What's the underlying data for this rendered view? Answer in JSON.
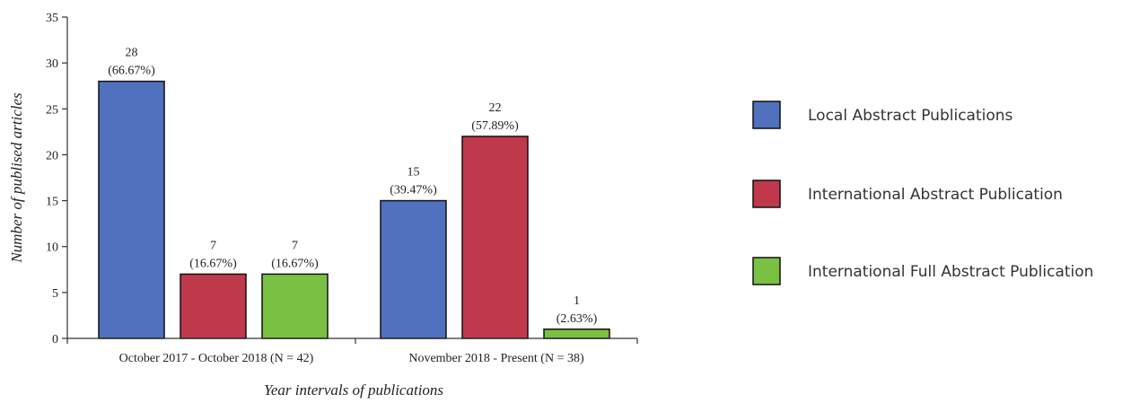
{
  "chart_data": {
    "type": "bar",
    "title": "",
    "xlabel": "Year intervals of publications",
    "ylabel": "Number of publised articles",
    "ylim": [
      0,
      35
    ],
    "yticks": [
      0,
      5,
      10,
      15,
      20,
      25,
      30,
      35
    ],
    "grid": false,
    "legend_position": "right",
    "categories": [
      "October 2017 - October 2018 (N = 42)",
      "November 2018 - Present (N = 38)"
    ],
    "series": [
      {
        "name": "Local Abstract Publications",
        "color": "#4f71be",
        "values": [
          28,
          15
        ],
        "labels": [
          [
            "28",
            "(66.67%)"
          ],
          [
            "15",
            "(39.47%)"
          ]
        ]
      },
      {
        "name": "International Abstract Publication",
        "color": "#c0394b",
        "values": [
          7,
          22
        ],
        "labels": [
          [
            "7",
            "(16.67%)"
          ],
          [
            "22",
            "(57.89%)"
          ]
        ]
      },
      {
        "name": "International Full Abstract Publication",
        "color": "#7ac143",
        "values": [
          7,
          1
        ],
        "labels": [
          [
            "7",
            "(16.67%)"
          ],
          [
            "1",
            "(2.63%)"
          ]
        ]
      }
    ]
  }
}
